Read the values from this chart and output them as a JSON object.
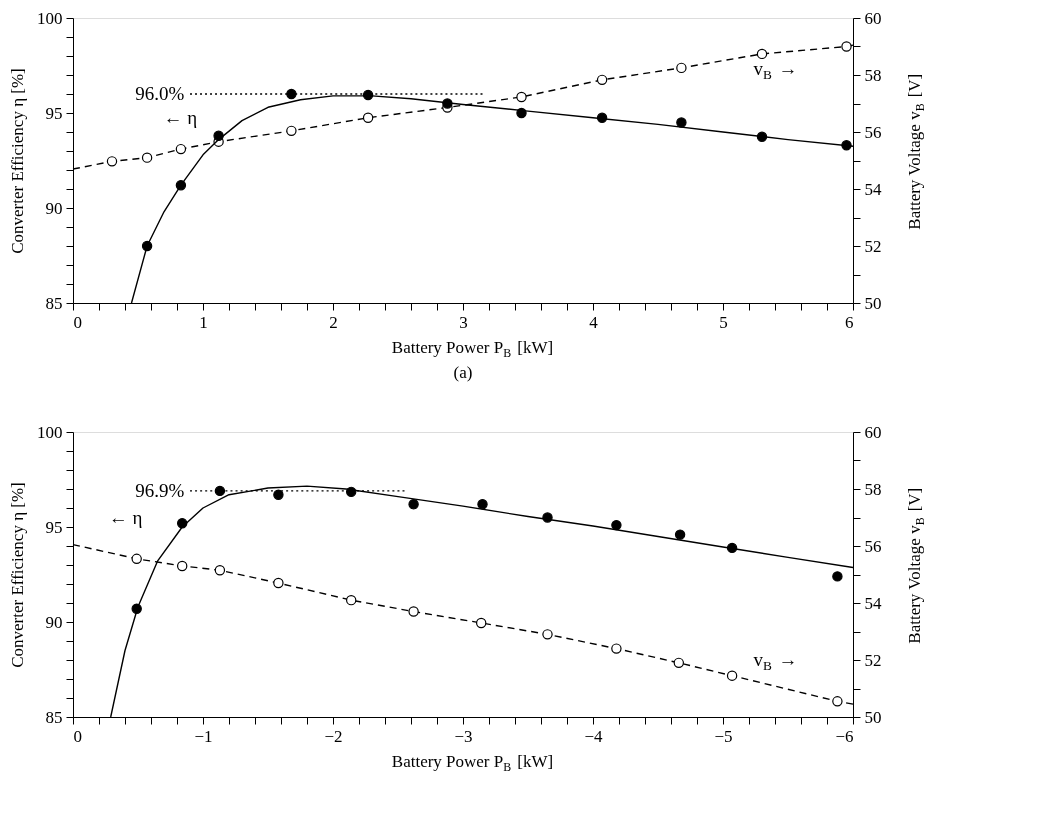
{
  "chart_data": [
    {
      "type": "scatter",
      "title": "(a)",
      "xlabel": "Battery Power P$_{B}$ [kW]",
      "ylabel": "Converter Efficiency η [%]",
      "y2label": "Battery Voltage v$_{B}$ [V]",
      "xlim": [
        0,
        6
      ],
      "ylim": [
        85,
        100
      ],
      "y2lim": [
        50,
        60
      ],
      "xticks": [
        0,
        {
          "value": 0.2,
          "label": null
        },
        {
          "value": 0.4,
          "label": null
        },
        {
          "value": 0.6,
          "label": null
        },
        {
          "value": 0.8,
          "label": null
        },
        1,
        {
          "value": 1.2,
          "label": null
        },
        {
          "value": 1.4,
          "label": null
        },
        {
          "value": 1.6,
          "label": null
        },
        {
          "value": 1.8,
          "label": null
        },
        2,
        {
          "value": 2.2,
          "label": null
        },
        {
          "value": 2.4,
          "label": null
        },
        {
          "value": 2.6,
          "label": null
        },
        {
          "value": 2.8,
          "label": null
        },
        3,
        {
          "value": 3.2,
          "label": null
        },
        {
          "value": 3.4,
          "label": null
        },
        {
          "value": 3.6,
          "label": null
        },
        {
          "value": 3.8,
          "label": null
        },
        4,
        {
          "value": 4.2,
          "label": null
        },
        {
          "value": 4.4,
          "label": null
        },
        {
          "value": 4.6,
          "label": null
        },
        {
          "value": 4.8,
          "label": null
        },
        5,
        {
          "value": 5.2,
          "label": null
        },
        {
          "value": 5.4,
          "label": null
        },
        {
          "value": 5.6,
          "label": null
        },
        {
          "value": 5.8,
          "label": null
        },
        6
      ],
      "yticks": [
        85,
        {
          "value": 86,
          "label": null
        },
        {
          "value": 87,
          "label": null
        },
        {
          "value": 88,
          "label": null
        },
        {
          "value": 89,
          "label": null
        },
        90,
        {
          "value": 91,
          "label": null
        },
        {
          "value": 92,
          "label": null
        },
        {
          "value": 93,
          "label": null
        },
        {
          "value": 94,
          "label": null
        },
        95,
        {
          "value": 96,
          "label": null
        },
        {
          "value": 97,
          "label": null
        },
        {
          "value": 98,
          "label": null
        },
        {
          "value": 99,
          "label": null
        },
        100
      ],
      "y2ticks": [
        50,
        {
          "value": 51,
          "label": null
        },
        52,
        {
          "value": 53,
          "label": null
        },
        54,
        {
          "value": 55,
          "label": null
        },
        56,
        {
          "value": 57,
          "label": null
        },
        58,
        {
          "value": 59,
          "label": null
        },
        60
      ],
      "series": [
        {
          "marker": "circle",
          "color": "#000000",
          "x": [
            0.57,
            0.83,
            1.12,
            1.68,
            2.27,
            2.88,
            3.45,
            4.07,
            4.68,
            5.3,
            5.95
          ],
          "values": [
            88.0,
            91.2,
            93.8,
            96.0,
            95.95,
            95.5,
            95.0,
            94.75,
            94.5,
            93.75,
            93.3
          ]
        },
        {
          "type": "line",
          "line_style": "solid",
          "color": "#000000",
          "x": [
            0.45,
            0.57,
            0.7,
            0.83,
            1.0,
            1.12,
            1.3,
            1.5,
            1.75,
            2.0,
            2.3,
            2.6,
            3.0,
            3.5,
            4.0,
            4.5,
            5.0,
            5.5,
            6.0
          ],
          "values": [
            85.0,
            88.0,
            89.8,
            91.2,
            92.8,
            93.6,
            94.6,
            95.3,
            95.7,
            95.9,
            95.9,
            95.75,
            95.45,
            95.1,
            94.75,
            94.4,
            94.0,
            93.6,
            93.25
          ]
        },
        {
          "type": "line",
          "line_style": "dotted",
          "color": "#000000",
          "x": [
            0.9,
            3.15
          ],
          "values": [
            96.0,
            96.0
          ]
        },
        {
          "type": "line",
          "line_style": "dashed",
          "axis": "y2",
          "color": "#000000",
          "x": [
            0,
            0.3,
            0.57,
            0.83,
            1.12,
            1.68,
            2.27,
            2.88,
            3.45,
            4.07,
            4.68,
            5.3,
            5.95,
            6.0
          ],
          "values": [
            54.7,
            54.97,
            55.1,
            55.4,
            55.66,
            56.04,
            56.5,
            56.86,
            57.23,
            57.83,
            58.25,
            58.74,
            59.0,
            59.05
          ]
        },
        {
          "marker": "circle",
          "axis": "y2",
          "color": "#ffffff",
          "x": [
            0.3,
            0.57,
            0.83,
            1.12,
            1.68,
            2.27,
            2.88,
            3.45,
            4.07,
            4.68,
            5.3,
            5.95
          ],
          "values": [
            54.97,
            55.1,
            55.4,
            55.66,
            56.04,
            56.5,
            56.86,
            57.23,
            57.83,
            58.25,
            58.74,
            59.0
          ]
        }
      ],
      "annotations": [
        {
          "text": "96.0%",
          "x": 0.88,
          "y": 96.0
        },
        "← η",
        "v$_{B}$ →"
      ]
    },
    {
      "type": "scatter",
      "xlabel": "Battery Power P$_{B}$ [kW]",
      "ylabel": "Converter Efficiency η [%]",
      "y2label": "Battery Voltage v$_{B}$ [V]",
      "xlim": [
        0,
        -6
      ],
      "ylim": [
        85,
        100
      ],
      "y2lim": [
        50,
        60
      ],
      "xticks": [
        0,
        {
          "value": -0.2,
          "label": null
        },
        {
          "value": -0.4,
          "label": null
        },
        {
          "value": -0.6,
          "label": null
        },
        {
          "value": -0.8,
          "label": null
        },
        {
          "value": -1,
          "label": "−1"
        },
        {
          "value": -1.2,
          "label": null
        },
        {
          "value": -1.4,
          "label": null
        },
        {
          "value": -1.6,
          "label": null
        },
        {
          "value": -1.8,
          "label": null
        },
        {
          "value": -2,
          "label": "−2"
        },
        {
          "value": -2.2,
          "label": null
        },
        {
          "value": -2.4,
          "label": null
        },
        {
          "value": -2.6,
          "label": null
        },
        {
          "value": -2.8,
          "label": null
        },
        {
          "value": -3,
          "label": "−3"
        },
        {
          "value": -3.2,
          "label": null
        },
        {
          "value": -3.4,
          "label": null
        },
        {
          "value": -3.6,
          "label": null
        },
        {
          "value": -3.8,
          "label": null
        },
        {
          "value": -4,
          "label": "−4"
        },
        {
          "value": -4.2,
          "label": null
        },
        {
          "value": -4.4,
          "label": null
        },
        {
          "value": -4.6,
          "label": null
        },
        {
          "value": -4.8,
          "label": null
        },
        {
          "value": -5,
          "label": "−5"
        },
        {
          "value": -5.2,
          "label": null
        },
        {
          "value": -5.4,
          "label": null
        },
        {
          "value": -5.6,
          "label": null
        },
        {
          "value": -5.8,
          "label": null
        },
        {
          "value": -6,
          "label": "−6"
        }
      ],
      "yticks": [
        85,
        {
          "value": 86,
          "label": null
        },
        {
          "value": 87,
          "label": null
        },
        {
          "value": 88,
          "label": null
        },
        {
          "value": 89,
          "label": null
        },
        90,
        {
          "value": 91,
          "label": null
        },
        {
          "value": 92,
          "label": null
        },
        {
          "value": 93,
          "label": null
        },
        {
          "value": 94,
          "label": null
        },
        95,
        {
          "value": 96,
          "label": null
        },
        {
          "value": 97,
          "label": null
        },
        {
          "value": 98,
          "label": null
        },
        {
          "value": 99,
          "label": null
        },
        100
      ],
      "y2ticks": [
        50,
        {
          "value": 51,
          "label": null
        },
        52,
        {
          "value": 53,
          "label": null
        },
        54,
        {
          "value": 55,
          "label": null
        },
        56,
        {
          "value": 57,
          "label": null
        },
        58,
        {
          "value": 59,
          "label": null
        },
        60
      ],
      "series": [
        {
          "marker": "circle",
          "color": "#000000",
          "x": [
            -0.49,
            -0.84,
            -1.13,
            -1.58,
            -2.14,
            -2.62,
            -3.15,
            -3.65,
            -4.18,
            -4.67,
            -5.07,
            -5.88
          ],
          "values": [
            90.7,
            95.2,
            96.9,
            96.7,
            96.85,
            96.2,
            96.2,
            95.5,
            95.1,
            94.6,
            93.9,
            92.4
          ]
        },
        {
          "type": "line",
          "line_style": "solid",
          "color": "#000000",
          "x": [
            -0.29,
            -0.4,
            -0.5,
            -0.65,
            -0.84,
            -1.0,
            -1.2,
            -1.5,
            -1.8,
            -2.1,
            -2.5,
            -3.0,
            -3.5,
            -4.0,
            -4.5,
            -5.0,
            -5.5,
            -6.0
          ],
          "values": [
            85.0,
            88.5,
            90.8,
            93.2,
            95.0,
            96.0,
            96.7,
            97.05,
            97.15,
            97.0,
            96.6,
            96.1,
            95.55,
            95.05,
            94.5,
            93.95,
            93.4,
            92.87
          ]
        },
        {
          "type": "line",
          "line_style": "dotted",
          "color": "#000000",
          "x": [
            -0.9,
            -2.55
          ],
          "values": [
            96.9,
            96.9
          ]
        },
        {
          "type": "line",
          "line_style": "dashed",
          "axis": "y2",
          "color": "#000000",
          "x": [
            0,
            -0.49,
            -0.84,
            -1.13,
            -1.58,
            -2.14,
            -2.62,
            -3.14,
            -3.65,
            -4.18,
            -4.66,
            -5.07,
            -5.88,
            -6.0
          ],
          "values": [
            56.05,
            55.55,
            55.3,
            55.15,
            54.7,
            54.1,
            53.7,
            53.3,
            52.9,
            52.4,
            51.9,
            51.45,
            50.55,
            50.45
          ]
        },
        {
          "marker": "circle",
          "axis": "y2",
          "color": "#ffffff",
          "x": [
            -0.49,
            -0.84,
            -1.13,
            -1.58,
            -2.14,
            -2.62,
            -3.14,
            -3.65,
            -4.18,
            -4.66,
            -5.07,
            -5.88
          ],
          "values": [
            55.55,
            55.3,
            55.15,
            54.7,
            54.1,
            53.7,
            53.3,
            52.9,
            52.4,
            51.9,
            51.45,
            50.55
          ]
        }
      ],
      "annotations": [
        {
          "text": "96.9%",
          "x": -0.88,
          "y": 96.9
        },
        "← η",
        "v$_{B}$ →"
      ]
    }
  ]
}
